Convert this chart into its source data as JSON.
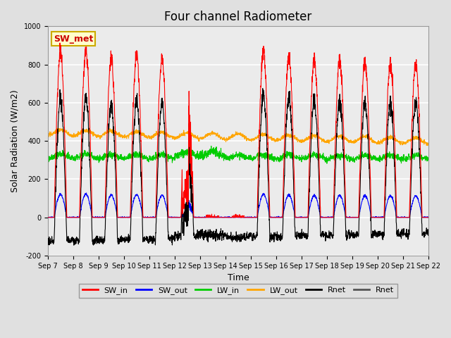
{
  "title": "Four channel Radiometer",
  "xlabel": "Time",
  "ylabel": "Solar Radiation (W/m2)",
  "ylim": [
    -200,
    1000
  ],
  "n_days": 15,
  "x_tick_labels": [
    "Sep 7",
    "Sep 8",
    "Sep 9",
    "Sep 10",
    "Sep 11",
    "Sep 12",
    "Sep 13",
    "Sep 14",
    "Sep 15",
    "Sep 16",
    "Sep 17",
    "Sep 18",
    "Sep 19",
    "Sep 20",
    "Sep 21",
    "Sep 22"
  ],
  "annotation_text": "SW_met",
  "annotation_color": "#CC0000",
  "annotation_bg": "#FFFFCC",
  "annotation_edge": "#CCAA00",
  "colors": {
    "SW_in": "#FF0000",
    "SW_out": "#0000FF",
    "LW_in": "#00CC00",
    "LW_out": "#FFA500",
    "Rnet": "#000000",
    "Rnet2": "#555555"
  },
  "bg_color": "#E0E0E0",
  "plot_bg": "#EBEBEB",
  "grid_color": "#FFFFFF",
  "title_fontsize": 12,
  "tick_fontsize": 7,
  "label_fontsize": 9,
  "legend_fontsize": 8
}
